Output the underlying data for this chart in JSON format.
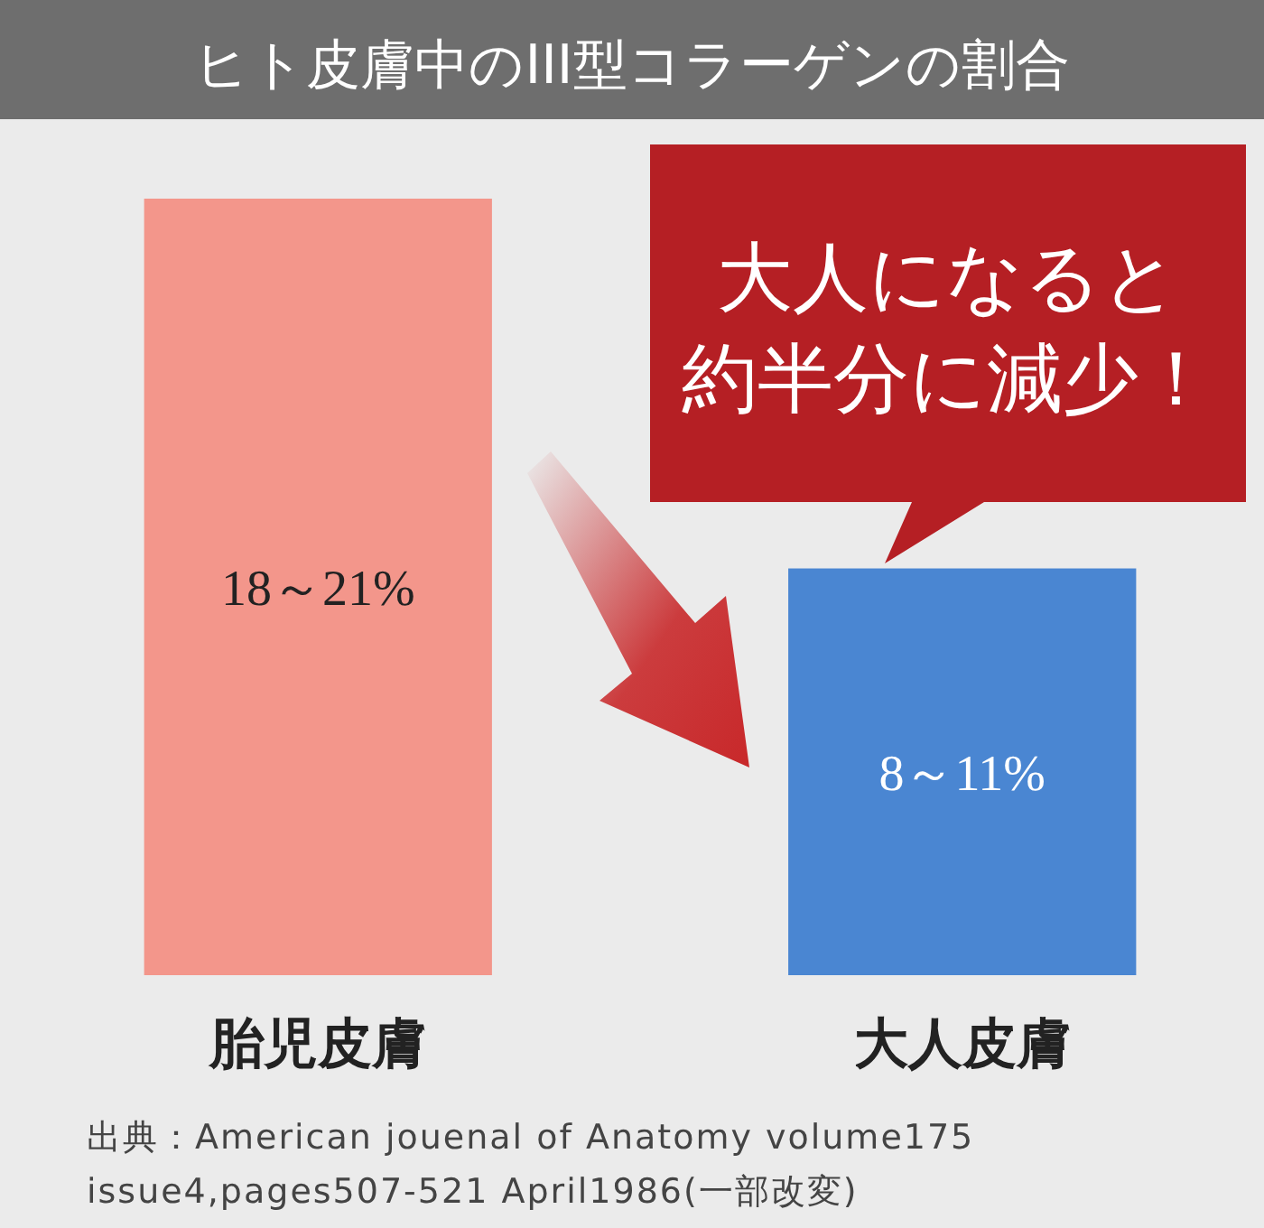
{
  "chart_data": {
    "type": "bar",
    "title": "ヒト皮膚中のIII型コラーゲンの割合",
    "ylim": [
      0,
      21
    ],
    "categories": [
      "胎児皮膚",
      "大人皮膚"
    ],
    "values": [
      21,
      11
    ],
    "colors": [
      "#f3968b",
      "#4a86d2"
    ],
    "value_labels": [
      "18～21%",
      "8～11%"
    ],
    "annotations": [
      "大人になると約半分に減少！",
      "出典：American jouenal of Anatomy volume175\nissue4,pages507-521 April1986(一部改変)"
    ]
  }
}
